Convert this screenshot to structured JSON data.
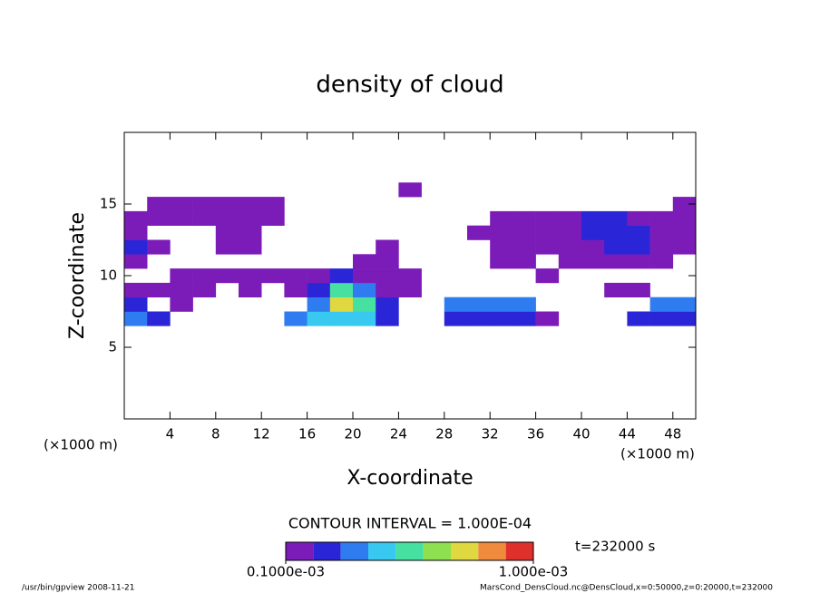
{
  "chart_data": {
    "type": "heatmap",
    "title": "density of cloud",
    "xlabel": "X-coordinate",
    "ylabel": "Z-coordinate",
    "xunit": "(×1000 m)",
    "xunit2": "(×1000 m)",
    "contour_note": "CONTOUR INTERVAL = 1.000E-04",
    "time_note": "t=232000 s",
    "footer_left": "/usr/bin/gpview   2008-11-21",
    "footer_right": "MarsCond_DensCloud.nc@DensCloud,x=0:50000,z=0:20000,t=232000",
    "xlim": [
      0,
      50
    ],
    "ylim": [
      0,
      20
    ],
    "xticks": [
      4,
      8,
      12,
      16,
      20,
      24,
      28,
      32,
      36,
      40,
      44,
      48
    ],
    "yticks": [
      5,
      10,
      15
    ],
    "x": [
      1,
      3,
      5,
      7,
      9,
      11,
      13,
      15,
      17,
      19,
      21,
      23,
      25,
      27,
      29,
      31,
      33,
      35,
      37,
      39,
      41,
      43,
      45,
      47,
      49
    ],
    "y": [
      7,
      8,
      9,
      10,
      11,
      12,
      13,
      14,
      15,
      16
    ],
    "values": [
      [
        0.0003,
        0.0002,
        0,
        0,
        0,
        0,
        0,
        0.0003,
        0.0004,
        0.0004,
        0.0004,
        0.0002,
        0,
        0,
        0.0002,
        0.0002,
        0.0002,
        0.0002,
        0.0001,
        0,
        0,
        0,
        0.0002,
        0.0002,
        0.0002
      ],
      [
        0.0002,
        0,
        0.0001,
        0,
        0,
        0,
        0,
        0,
        0.0003,
        0.0007,
        0.0005,
        0.0002,
        0,
        0,
        0.0003,
        0.0003,
        0.0003,
        0.0003,
        0,
        0,
        0,
        0,
        0,
        0.0003,
        0.0003
      ],
      [
        0.0001,
        0.0001,
        0.0001,
        0.0001,
        0,
        0.0001,
        0,
        0.0001,
        0.0002,
        0.0005,
        0.0003,
        0.0001,
        0.0001,
        0,
        0,
        0,
        0,
        0,
        0,
        0,
        0,
        0.0001,
        0.0001,
        0,
        0
      ],
      [
        0,
        0,
        0.0001,
        0.0001,
        0.0001,
        0.0001,
        0.0001,
        0.0001,
        0.0001,
        0.0002,
        0.0001,
        0.0001,
        0.0001,
        0,
        0,
        0,
        0,
        0,
        0.0001,
        0,
        0,
        0,
        0,
        0,
        0
      ],
      [
        0.0001,
        0,
        0,
        0,
        0,
        0,
        0,
        0,
        0,
        0,
        0.0001,
        0.0001,
        0,
        0,
        0,
        0,
        0.0001,
        0.0001,
        0,
        0.0001,
        0.0001,
        0.0001,
        0.0001,
        0.0001,
        0
      ],
      [
        0.0002,
        0.0001,
        0,
        0,
        0.0001,
        0.0001,
        0,
        0,
        0,
        0,
        0,
        0.0001,
        0,
        0,
        0,
        0,
        0.0001,
        0.0001,
        0.0001,
        0.0001,
        0.0001,
        0.0002,
        0.0002,
        0.0001,
        0.0001
      ],
      [
        0.0001,
        0,
        0,
        0,
        0.0001,
        0.0001,
        0,
        0,
        0,
        0,
        0,
        0,
        0,
        0,
        0,
        0.0001,
        0.0001,
        0.0001,
        0.0001,
        0.0001,
        0.0002,
        0.0002,
        0.0002,
        0.0001,
        0.0001
      ],
      [
        0.0001,
        0.0001,
        0.0001,
        0.0001,
        0.0001,
        0.0001,
        0.0001,
        0,
        0,
        0,
        0,
        0,
        0,
        0,
        0,
        0,
        0.0001,
        0.0001,
        0.0001,
        0.0001,
        0.0002,
        0.0002,
        0.0001,
        0.0001,
        0.0001
      ],
      [
        0,
        0.0001,
        0.0001,
        0.0001,
        0.0001,
        0.0001,
        0.0001,
        0,
        0,
        0,
        0,
        0,
        0,
        0,
        0,
        0,
        0,
        0,
        0,
        0,
        0,
        0,
        0,
        0,
        0.0001
      ],
      [
        0,
        0,
        0,
        0,
        0,
        0,
        0,
        0,
        0,
        0,
        0,
        0,
        0.0001,
        0,
        0,
        0,
        0,
        0,
        0,
        0,
        0,
        0,
        0,
        0,
        0
      ]
    ],
    "colorbar": {
      "levels": [
        0.0001,
        0.0002,
        0.0003,
        0.0004,
        0.0005,
        0.0006,
        0.0007,
        0.0008,
        0.0009,
        0.001
      ],
      "colors": [
        "#7c1cb8",
        "#2a26d8",
        "#2f7cf0",
        "#38c8f0",
        "#46e0a0",
        "#8ee050",
        "#e0d840",
        "#f08a3c",
        "#e0302c"
      ],
      "ticks": [
        {
          "value": 0.0001,
          "label": "0.1000e-03"
        },
        {
          "value": 0.001,
          "label": "1.000e-03"
        }
      ]
    }
  }
}
